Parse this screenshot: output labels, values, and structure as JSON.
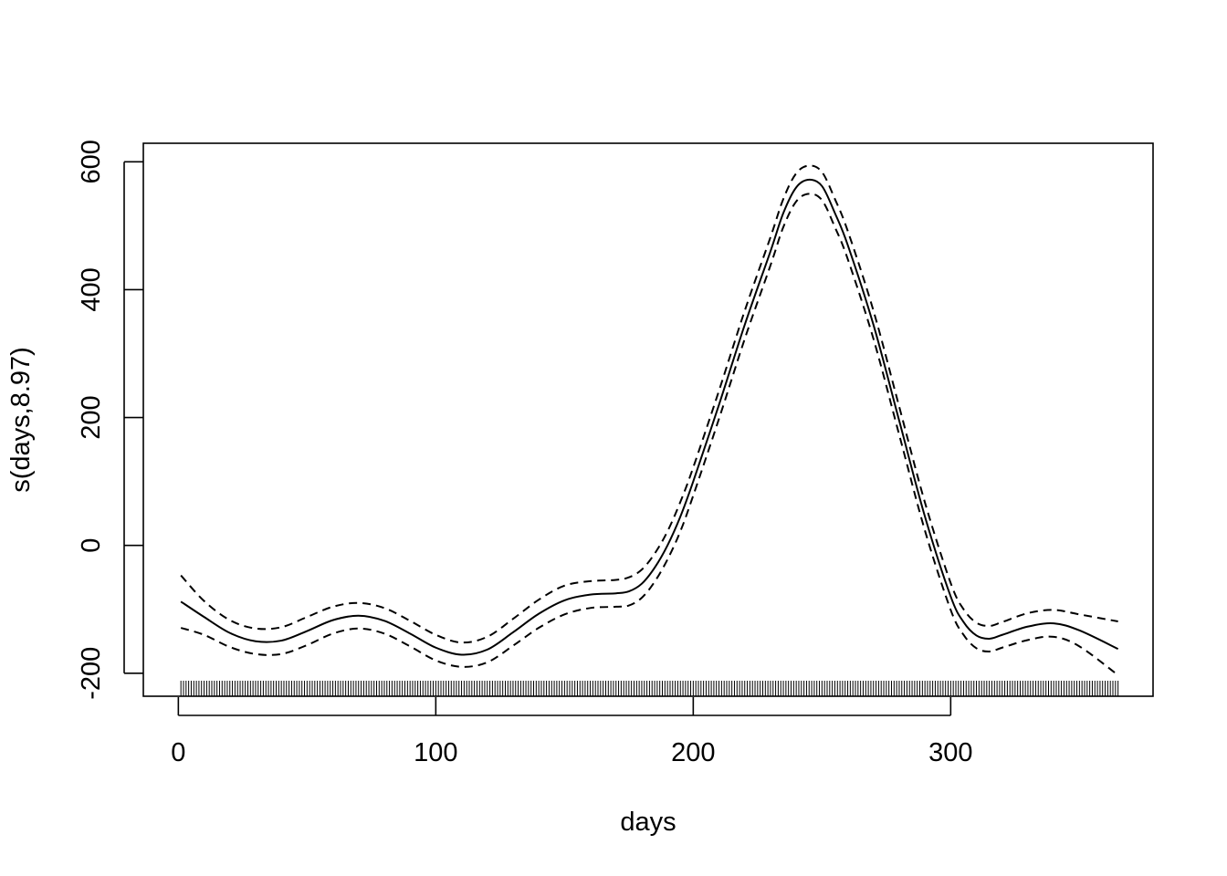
{
  "chart_data": {
    "type": "line",
    "title": "",
    "xlabel": "days",
    "ylabel": "s(days,8.97)",
    "xlim": [
      -13.6,
      378.6
    ],
    "ylim": [
      -236,
      629
    ],
    "grid": false,
    "legend": "none",
    "x_ticks": [
      0,
      100,
      200,
      300
    ],
    "y_ticks": [
      -200,
      0,
      200,
      400,
      600
    ],
    "x_tick_labels": [
      "0",
      "100",
      "200",
      "300"
    ],
    "y_tick_labels": [
      "-200",
      "0",
      "200",
      "400",
      "600"
    ],
    "rug": {
      "from": 1,
      "to": 365,
      "step": 1
    },
    "series": [
      {
        "role": "fit",
        "style": "solid",
        "x": [
          1,
          10,
          20,
          30,
          40,
          50,
          60,
          70,
          80,
          90,
          100,
          110,
          120,
          130,
          140,
          150,
          160,
          170,
          175,
          180,
          185,
          190,
          195,
          200,
          210,
          220,
          230,
          235,
          240,
          245,
          250,
          255,
          260,
          270,
          280,
          290,
          300,
          305,
          310,
          315,
          320,
          330,
          340,
          350,
          365
        ],
        "y": [
          -88,
          -112,
          -137,
          -150,
          -149,
          -134,
          -117,
          -110,
          -118,
          -138,
          -160,
          -171,
          -163,
          -136,
          -107,
          -86,
          -77,
          -75,
          -72,
          -60,
          -35,
          0,
          45,
          100,
          220,
          345,
          460,
          520,
          560,
          572,
          562,
          520,
          470,
          345,
          195,
          45,
          -80,
          -120,
          -141,
          -146,
          -140,
          -127,
          -122,
          -133,
          -162
        ]
      },
      {
        "role": "upper",
        "style": "dashed",
        "x": [
          1,
          10,
          20,
          30,
          40,
          50,
          60,
          70,
          80,
          90,
          100,
          110,
          120,
          130,
          140,
          150,
          160,
          170,
          175,
          180,
          185,
          190,
          195,
          200,
          210,
          220,
          230,
          235,
          240,
          245,
          250,
          255,
          260,
          270,
          280,
          290,
          300,
          305,
          310,
          315,
          320,
          330,
          340,
          350,
          365
        ],
        "y": [
          -47,
          -87,
          -117,
          -130,
          -128,
          -112,
          -96,
          -90,
          -98,
          -118,
          -140,
          -152,
          -143,
          -115,
          -85,
          -63,
          -56,
          -54,
          -50,
          -38,
          -13,
          22,
          68,
          122,
          242,
          367,
          482,
          542,
          582,
          594,
          584,
          542,
          492,
          367,
          217,
          67,
          -59,
          -100,
          -121,
          -126,
          -120,
          -106,
          -101,
          -108,
          -119
        ]
      },
      {
        "role": "lower",
        "style": "dashed",
        "x": [
          1,
          10,
          20,
          30,
          40,
          50,
          60,
          70,
          80,
          90,
          100,
          110,
          120,
          130,
          140,
          150,
          160,
          170,
          175,
          180,
          185,
          190,
          195,
          200,
          210,
          220,
          230,
          235,
          240,
          245,
          250,
          255,
          260,
          270,
          280,
          290,
          300,
          305,
          310,
          315,
          320,
          330,
          340,
          350,
          365
        ],
        "y": [
          -129,
          -140,
          -159,
          -170,
          -170,
          -156,
          -138,
          -130,
          -138,
          -158,
          -180,
          -190,
          -183,
          -157,
          -129,
          -108,
          -98,
          -96,
          -94,
          -82,
          -57,
          -22,
          22,
          78,
          198,
          323,
          438,
          498,
          538,
          550,
          540,
          498,
          448,
          323,
          173,
          23,
          -101,
          -140,
          -161,
          -166,
          -160,
          -148,
          -143,
          -158,
          -203
        ]
      }
    ]
  }
}
